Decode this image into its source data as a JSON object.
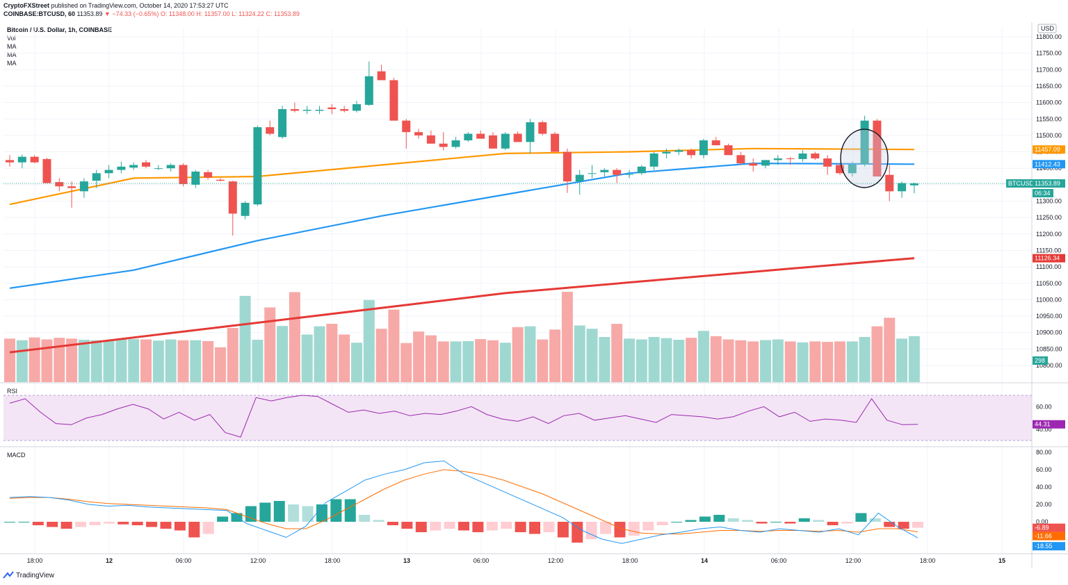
{
  "header": {
    "publisher": "CryptoFXStreet",
    "published_text": "published on TradingView.com, October 14, 2020 17:53:27 UTC",
    "symbol_line": "COINBASE:BTCUSD, 60",
    "price": "11353.89",
    "change": "▼ −74.33 (−0.65%)",
    "ohlc": "O: 11348.00  H: 11357.00  L: 11324.22  C: 11353.89"
  },
  "legend": {
    "title": "Bitcoin / U.S. Dollar, 1h, COINBASE",
    "items": [
      "Vol",
      "MA",
      "MA",
      "MA"
    ]
  },
  "axis": {
    "currency": "USD",
    "price_ticks": [
      "11800.00",
      "11750.00",
      "11700.00",
      "11650.00",
      "11600.00",
      "11550.00",
      "11500.00",
      "11450.00",
      "11400.00",
      "11350.00",
      "11300.00",
      "11250.00",
      "11200.00",
      "11150.00",
      "11100.00",
      "11050.00",
      "11000.00",
      "10950.00",
      "10900.00",
      "10850.00",
      "10800.00"
    ],
    "rsi_ticks": [
      "60.00",
      "40.00"
    ],
    "macd_ticks": [
      "80.00",
      "60.00",
      "40.00",
      "20.00",
      "0.00"
    ],
    "time_ticks": [
      "18:00",
      "12",
      "06:00",
      "12:00",
      "18:00",
      "13",
      "06:00",
      "12:00",
      "18:00",
      "14",
      "06:00",
      "12:00",
      "18:00",
      "15"
    ]
  },
  "price_labels": {
    "ma_orange": "11457.09",
    "ma_blue": "11412.43",
    "symbol": "BTCUSD",
    "last": "11353.89",
    "countdown": "06:34",
    "ma_red": "11126.34",
    "volume": "298"
  },
  "panes": {
    "rsi_label": "RSI",
    "rsi_value": "44.31",
    "macd_label": "MACD",
    "macd_values": [
      "-6.89",
      "-11.66",
      "-18.55"
    ]
  },
  "brand": "TradingView",
  "colors": {
    "up": "#26a69a",
    "down": "#ef5350",
    "ma_orange": "#ff9800",
    "ma_blue": "#2196f3",
    "ma_red": "#e53935",
    "rsi_line": "#9c27b0",
    "rsi_band": "#f3e5f5"
  },
  "chart_data": {
    "type": "candlestick",
    "timeframe": "1h",
    "candles_ohlc": [
      [
        11425,
        11440,
        11405,
        11418
      ],
      [
        11418,
        11442,
        11400,
        11435
      ],
      [
        11435,
        11440,
        11415,
        11418
      ],
      [
        11428,
        11432,
        11355,
        11355
      ],
      [
        11358,
        11370,
        11330,
        11345
      ],
      [
        11345,
        11360,
        11280,
        11340
      ],
      [
        11330,
        11370,
        11310,
        11360
      ],
      [
        11362,
        11395,
        11340,
        11385
      ],
      [
        11385,
        11410,
        11370,
        11395
      ],
      [
        11395,
        11420,
        11385,
        11405
      ],
      [
        11402,
        11418,
        11395,
        11410
      ],
      [
        11418,
        11425,
        11400,
        11405
      ],
      [
        11398,
        11410,
        11395,
        11400
      ],
      [
        11400,
        11415,
        11390,
        11410
      ],
      [
        11410,
        11415,
        11345,
        11352
      ],
      [
        11350,
        11395,
        11340,
        11390
      ],
      [
        11388,
        11395,
        11365,
        11372
      ],
      [
        11365,
        11370,
        11360,
        11362
      ],
      [
        11360,
        11362,
        11195,
        11262
      ],
      [
        11255,
        11300,
        11245,
        11295
      ],
      [
        11290,
        11530,
        11285,
        11525
      ],
      [
        11525,
        11545,
        11500,
        11505
      ],
      [
        11495,
        11590,
        11490,
        11580
      ],
      [
        11580,
        11600,
        11570,
        11575
      ],
      [
        11575,
        11590,
        11565,
        11578
      ],
      [
        11575,
        11590,
        11565,
        11578
      ],
      [
        11585,
        11595,
        11565,
        11580
      ],
      [
        11580,
        11590,
        11570,
        11575
      ],
      [
        11575,
        11605,
        11570,
        11595
      ],
      [
        11593,
        11725,
        11590,
        11680
      ],
      [
        11695,
        11715,
        11670,
        11668
      ],
      [
        11668,
        11675,
        11545,
        11545
      ],
      [
        11545,
        11550,
        11460,
        11510
      ],
      [
        11510,
        11520,
        11490,
        11500
      ],
      [
        11500,
        11515,
        11475,
        11475
      ],
      [
        11475,
        11510,
        11455,
        11465
      ],
      [
        11465,
        11495,
        11460,
        11485
      ],
      [
        11485,
        11510,
        11480,
        11505
      ],
      [
        11505,
        11515,
        11490,
        11490
      ],
      [
        11500,
        11510,
        11460,
        11460
      ],
      [
        11460,
        11510,
        11455,
        11505
      ],
      [
        11505,
        11512,
        11480,
        11480
      ],
      [
        11480,
        11550,
        11445,
        11540
      ],
      [
        11540,
        11545,
        11500,
        11505
      ],
      [
        11505,
        11510,
        11450,
        11450
      ],
      [
        11450,
        11460,
        11325,
        11360
      ],
      [
        11360,
        11395,
        11320,
        11380
      ],
      [
        11385,
        11410,
        11370,
        11385
      ],
      [
        11388,
        11400,
        11375,
        11395
      ],
      [
        11395,
        11400,
        11355,
        11380
      ],
      [
        11380,
        11395,
        11370,
        11382
      ],
      [
        11385,
        11410,
        11380,
        11405
      ],
      [
        11405,
        11450,
        11395,
        11445
      ],
      [
        11445,
        11460,
        11430,
        11450
      ],
      [
        11450,
        11460,
        11440,
        11455
      ],
      [
        11455,
        11460,
        11430,
        11440
      ],
      [
        11440,
        11490,
        11430,
        11485
      ],
      [
        11485,
        11495,
        11470,
        11470
      ],
      [
        11470,
        11475,
        11440,
        11440
      ],
      [
        11440,
        11450,
        11410,
        11415
      ],
      [
        11415,
        11430,
        11390,
        11408
      ],
      [
        11408,
        11425,
        11400,
        11425
      ],
      [
        11425,
        11440,
        11410,
        11430
      ],
      [
        11430,
        11435,
        11410,
        11428
      ],
      [
        11428,
        11455,
        11420,
        11445
      ],
      [
        11445,
        11450,
        11425,
        11430
      ],
      [
        11430,
        11440,
        11380,
        11405
      ],
      [
        11410,
        11415,
        11380,
        11385
      ],
      [
        11385,
        11420,
        11375,
        11412
      ],
      [
        11412,
        11560,
        11405,
        11545
      ],
      [
        11545,
        11550,
        11385,
        11375
      ],
      [
        11380,
        11410,
        11300,
        11330
      ],
      [
        11330,
        11360,
        11310,
        11355
      ],
      [
        11348,
        11357,
        11324,
        11354
      ]
    ],
    "ma_orange": {
      "start": 11290,
      "points": [
        [
          0,
          11290
        ],
        [
          10,
          11370
        ],
        [
          20,
          11375
        ],
        [
          30,
          11410
        ],
        [
          40,
          11445
        ],
        [
          50,
          11450
        ],
        [
          60,
          11460
        ],
        [
          73,
          11457.09
        ]
      ]
    },
    "ma_blue": {
      "points": [
        [
          0,
          11035
        ],
        [
          10,
          11090
        ],
        [
          20,
          11180
        ],
        [
          30,
          11255
        ],
        [
          40,
          11320
        ],
        [
          50,
          11385
        ],
        [
          60,
          11415
        ],
        [
          73,
          11412.43
        ]
      ]
    },
    "ma_red": {
      "points": [
        [
          0,
          10840
        ],
        [
          20,
          10930
        ],
        [
          40,
          11020
        ],
        [
          60,
          11085
        ],
        [
          73,
          11126.34
        ]
      ]
    },
    "volume": [
      265,
      255,
      272,
      260,
      270,
      265,
      258,
      255,
      255,
      262,
      262,
      260,
      253,
      260,
      255,
      255,
      250,
      212,
      330,
      525,
      258,
      455,
      342,
      548,
      290,
      340,
      355,
      290,
      240,
      500,
      325,
      442,
      238,
      308,
      285,
      248,
      248,
      250,
      262,
      255,
      240,
      335,
      340,
      260,
      320,
      550,
      345,
      325,
      275,
      355,
      265,
      260,
      275,
      268,
      258,
      270,
      312,
      280,
      260,
      255,
      248,
      256,
      260,
      248,
      242,
      248,
      245,
      248,
      248,
      275,
      340,
      392,
      265,
      280
    ],
    "rsi": [
      63,
      67,
      55,
      45,
      44,
      50,
      53,
      58,
      62,
      58,
      49,
      55,
      48,
      53,
      37,
      33,
      68,
      65,
      68,
      70,
      69,
      62,
      55,
      57,
      54,
      56,
      52,
      54,
      53,
      56,
      60,
      53,
      49,
      47,
      51,
      45,
      52,
      54,
      48,
      50,
      52,
      49,
      46,
      53,
      52,
      51,
      49,
      51,
      56,
      60,
      51,
      55,
      47,
      49,
      48,
      46,
      67,
      48,
      44,
      44.31
    ],
    "macd_line": [
      28,
      29,
      28,
      25,
      20,
      18,
      19,
      17,
      16,
      15,
      14,
      13,
      -2,
      -10,
      -18,
      -5,
      22,
      35,
      48,
      55,
      60,
      68,
      70,
      55,
      45,
      35,
      25,
      15,
      5,
      -10,
      -20,
      -25,
      -20,
      -15,
      -12,
      -8,
      -6,
      -10,
      -12,
      -8,
      -10,
      -12,
      -8,
      -15,
      10,
      -6,
      -18.55
    ],
    "signal_line": [
      27,
      28,
      28,
      26,
      23,
      21,
      20,
      19,
      18,
      17,
      16,
      14,
      6,
      -2,
      -8,
      -8,
      2,
      14,
      26,
      38,
      48,
      55,
      60,
      58,
      54,
      48,
      40,
      32,
      22,
      12,
      2,
      -8,
      -13,
      -14,
      -14,
      -12,
      -10,
      -10,
      -11,
      -10,
      -10,
      -11,
      -10,
      -12,
      -8,
      -8,
      -11.66
    ],
    "macd_hist": [
      0,
      0,
      -4,
      -6,
      -8,
      -6,
      -4,
      -2,
      -3,
      -4,
      -6,
      -8,
      -10,
      -18,
      -14,
      6,
      10,
      18,
      22,
      24,
      20,
      18,
      20,
      26,
      26,
      8,
      2,
      -4,
      -8,
      -12,
      -10,
      -8,
      -10,
      -12,
      -10,
      -8,
      -12,
      -14,
      -12,
      -18,
      -24,
      -20,
      -14,
      -18,
      -16,
      -10,
      -4,
      0,
      2,
      6,
      8,
      4,
      2,
      -2,
      0,
      -2,
      4,
      2,
      -4,
      -2,
      10,
      4,
      -6,
      -8,
      -6.89
    ]
  }
}
